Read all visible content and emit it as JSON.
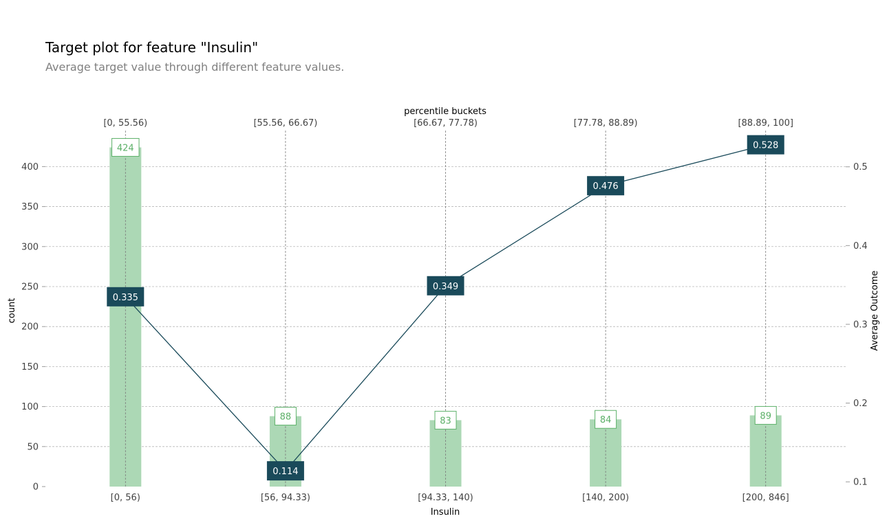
{
  "title": "Target plot for feature \"Insulin\"",
  "subtitle": "Average target value through different feature values.",
  "colors": {
    "bar": "#acd8b5",
    "bar_label": "#5cb068",
    "line": "#1a4a5a",
    "grid": "#b8b8b8"
  },
  "chart_data": {
    "type": "bar",
    "categories": [
      "[0, 56)",
      "[56, 94.33)",
      "[94.33, 140)",
      "[140, 200)",
      "[200, 846]"
    ],
    "top_categories": [
      "[0, 55.56)",
      "[55.56, 66.67)",
      "[66.67, 77.78)",
      "[77.78, 88.89)",
      "[88.89, 100]"
    ],
    "top_axis_label": "percentile buckets",
    "xlabel": "Insulin",
    "ylabel": "count",
    "y2label": "Average Outcome",
    "ylim": [
      0,
      445
    ],
    "y2lim": [
      0.094,
      0.546
    ],
    "yticks": [
      0,
      50,
      100,
      150,
      200,
      250,
      300,
      350,
      400
    ],
    "y2ticks": [
      "0.1",
      "0.2",
      "0.3",
      "0.4",
      "0.5"
    ],
    "series": [
      {
        "name": "count",
        "type": "bar",
        "values": [
          424,
          88,
          83,
          84,
          89
        ],
        "labels": [
          "424",
          "88",
          "83",
          "84",
          "89"
        ]
      },
      {
        "name": "Average Outcome",
        "type": "line",
        "axis": "right",
        "values": [
          0.335,
          0.114,
          0.349,
          0.476,
          0.528
        ],
        "labels": [
          "0.335",
          "0.114",
          "0.349",
          "0.476",
          "0.528"
        ]
      }
    ],
    "grid": true
  }
}
